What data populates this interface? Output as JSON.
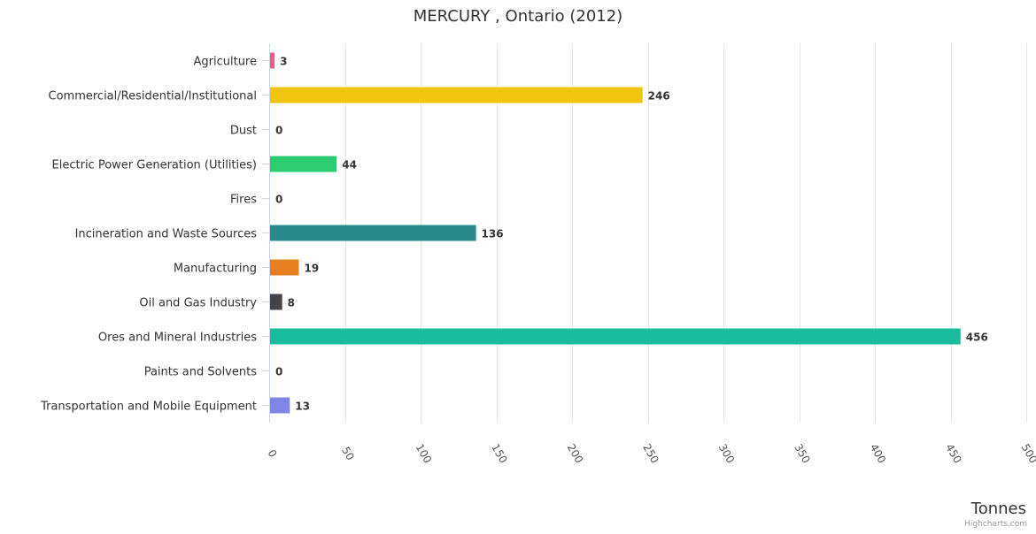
{
  "chart_data": {
    "type": "bar",
    "orientation": "horizontal",
    "title": "MERCURY , Ontario (2012)",
    "categories": [
      "Agriculture",
      "Commercial/Residential/Institutional",
      "Dust",
      "Electric Power Generation (Utilities)",
      "Fires",
      "Incineration and Waste Sources",
      "Manufacturing",
      "Oil and Gas Industry",
      "Ores and Mineral Industries",
      "Paints and Solvents",
      "Transportation and Mobile Equipment"
    ],
    "values": [
      3,
      246,
      0,
      44,
      0,
      136,
      19,
      8,
      456,
      0,
      13
    ],
    "value_labels": [
      "3",
      "246",
      "0",
      "44",
      "0",
      "136",
      "19",
      "8",
      "456",
      "0",
      "13"
    ],
    "colors": [
      "#f15c80",
      "#f1c40f",
      "#2ecc71",
      "#2ecc71",
      "#2ecc71",
      "#2a8a8a",
      "#e67e22",
      "#434348",
      "#1abc9c",
      "#8085e9",
      "#8085e9"
    ],
    "xlim": [
      0,
      500
    ],
    "x_ticks": [
      "0",
      "50",
      "100",
      "150",
      "200",
      "250",
      "300",
      "350",
      "400",
      "450",
      "500"
    ],
    "x_tick_values": [
      0,
      50,
      100,
      150,
      200,
      250,
      300,
      350,
      400,
      450,
      500
    ],
    "xlabel": "Tonnes",
    "ylabel": "",
    "grid": true,
    "legend": "none"
  },
  "credit": "Highcharts.com"
}
